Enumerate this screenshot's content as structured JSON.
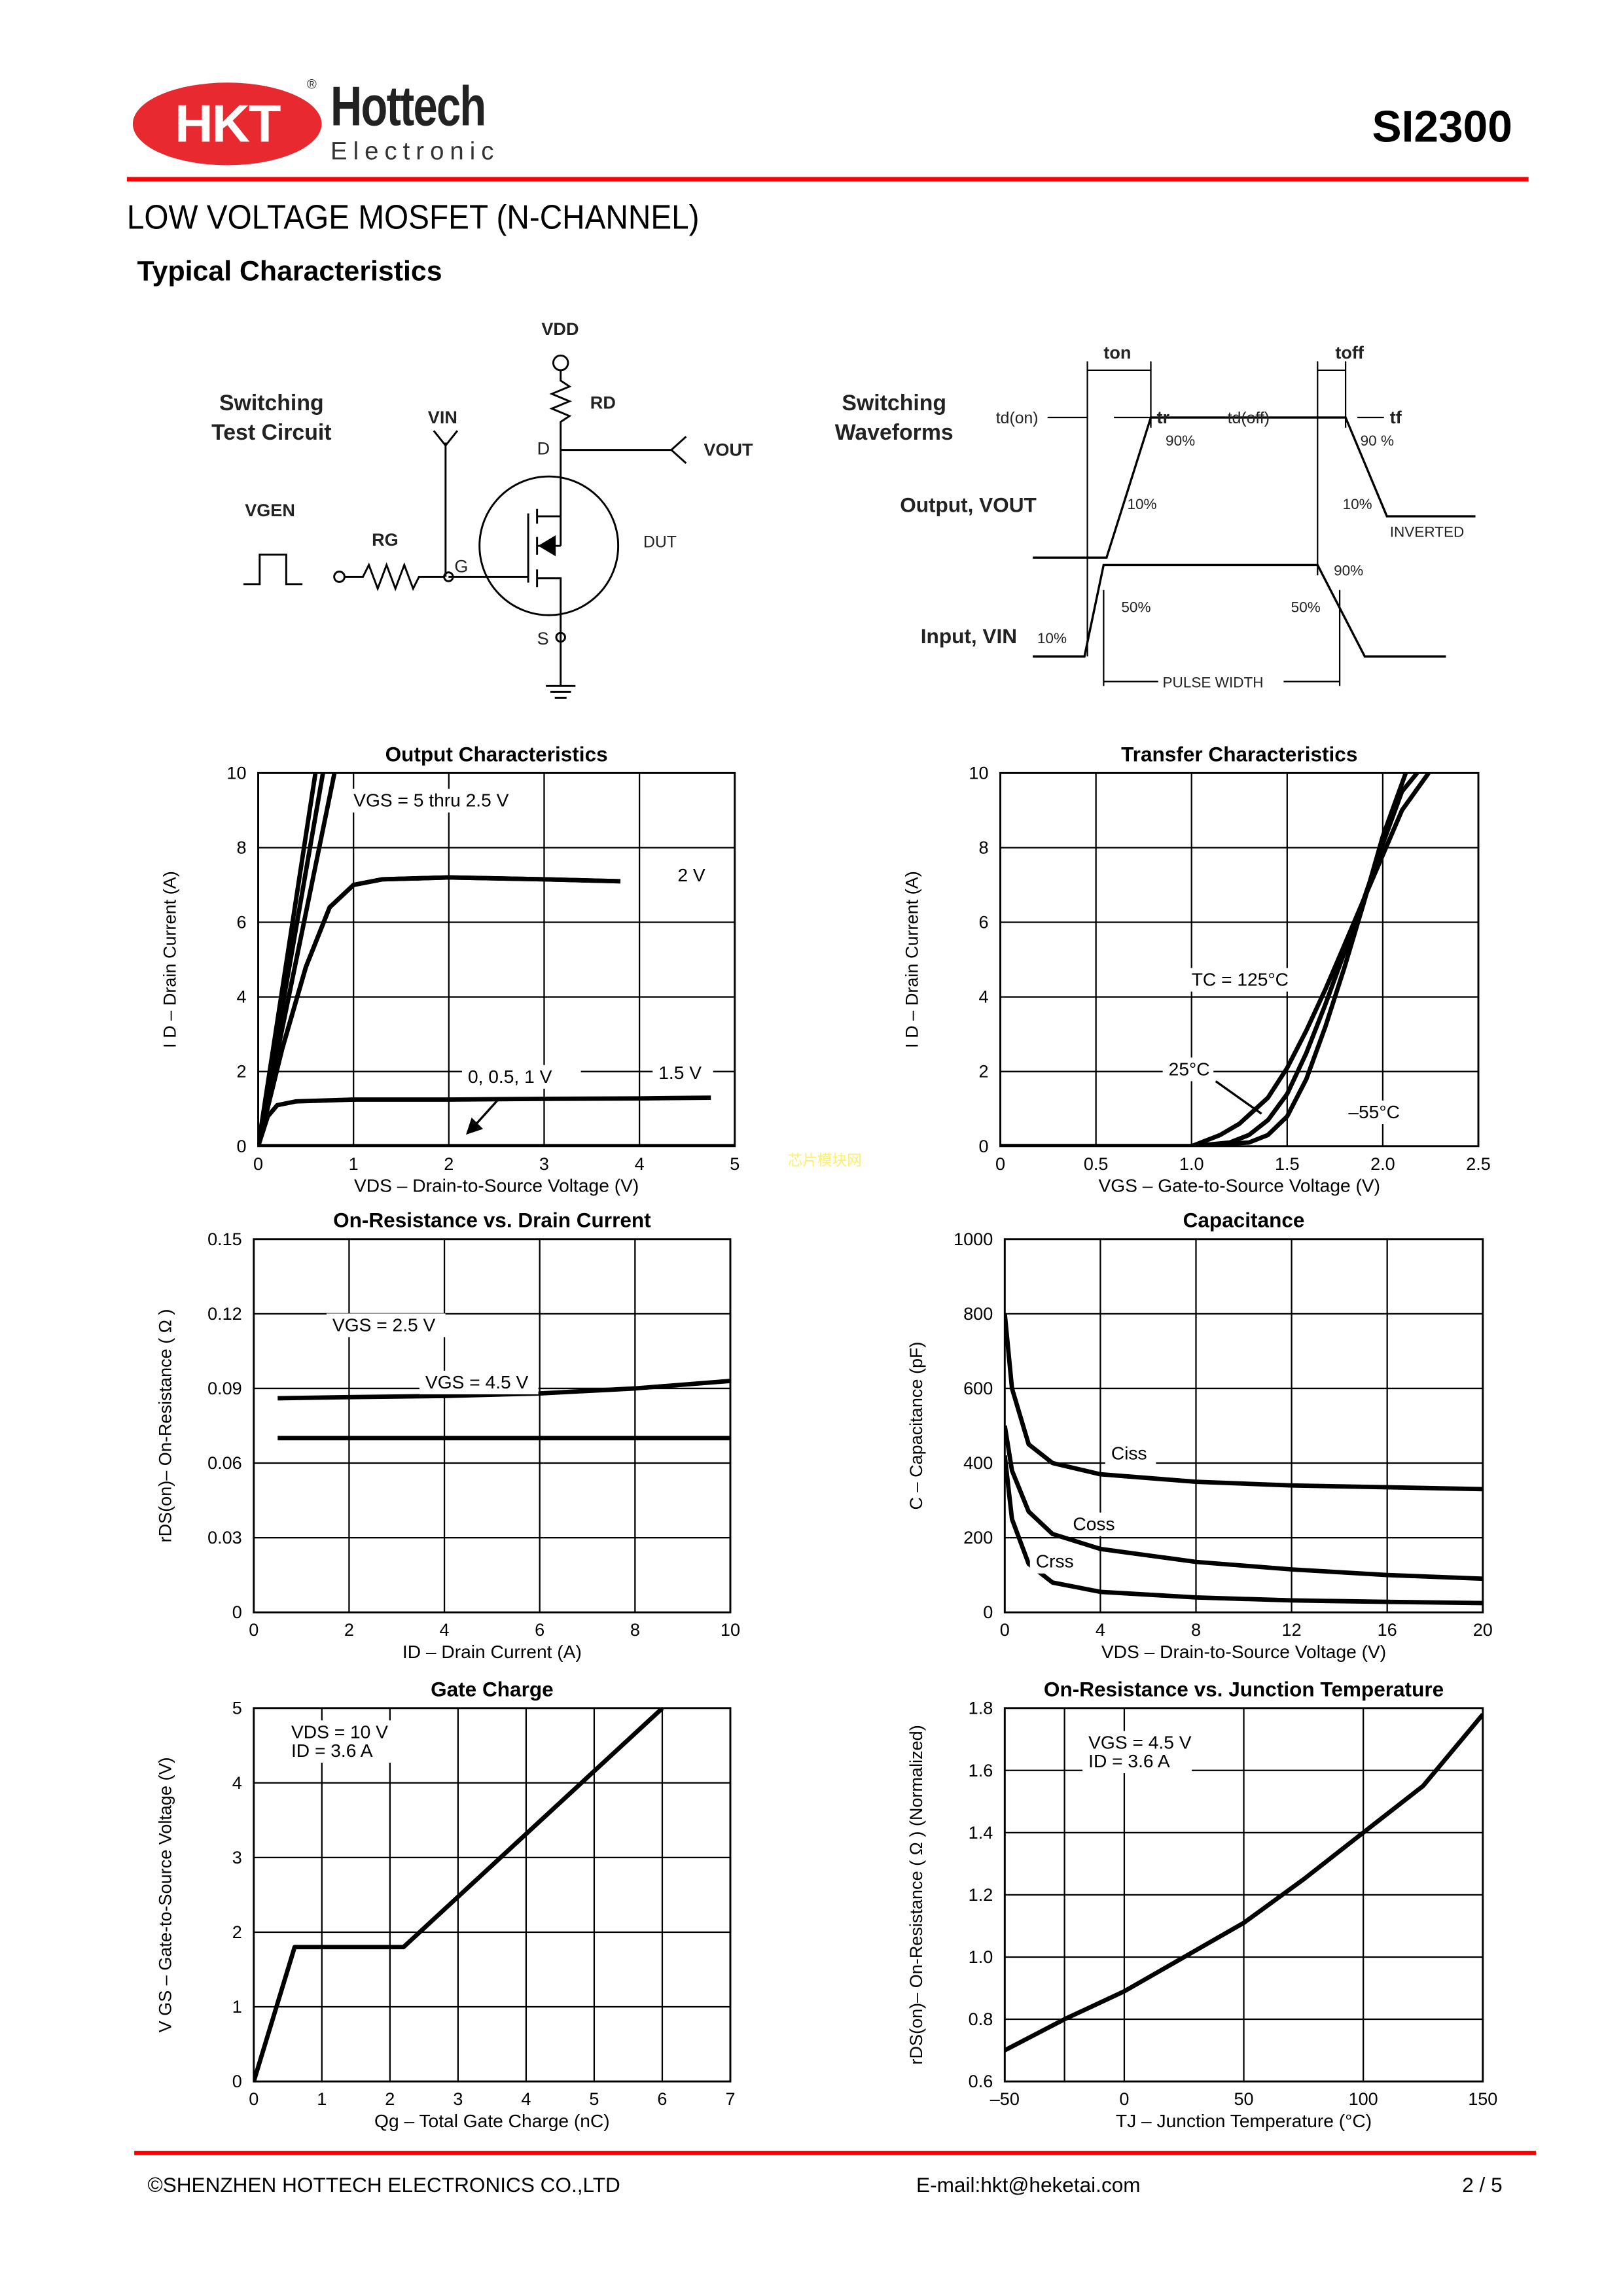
{
  "header": {
    "logo_mark": "HKT",
    "logo_brand": "Hottech",
    "logo_sub": "Electronic",
    "registered": "®",
    "part_number": "SI2300",
    "accent_color": "#ff0000",
    "logo_color": "#e8292f"
  },
  "document": {
    "title": "LOW VOLTAGE MOSFET  (N-CHANNEL)",
    "section": "Typical Characteristics"
  },
  "circuit": {
    "title1": "Switching",
    "title2": "Test Circuit",
    "vdd": "VDD",
    "rd": "RD",
    "d": "D",
    "vout": "VOUT",
    "vin": "VIN",
    "vgen": "VGEN",
    "rg": "RG",
    "g": "G",
    "s": "S",
    "dut": "DUT"
  },
  "waveforms": {
    "title1": "Switching",
    "title2": "Waveforms",
    "ton": "ton",
    "toff": "toff",
    "tdon": "td(on)",
    "tr": "tr",
    "tdoff": "td(off)",
    "tf": "tf",
    "output": "Output, VOUT",
    "input": "Input, VIN",
    "p90a": "90%",
    "p90b": "90 %",
    "p10a": "10%",
    "p10b": "10%",
    "inverted": "INVERTED",
    "p90c": "90%",
    "p50a": "50%",
    "p50b": "50%",
    "p10c": "10%",
    "pulse": "PULSE WIDTH"
  },
  "watermark": "芯片模块网",
  "chart_data": [
    {
      "type": "line",
      "title": "Output Characteristics",
      "xlabel": "VDS  –  Drain-to-Source Voltage (V)",
      "ylabel": "I D – Drain Current (A)",
      "xlim": [
        0,
        5
      ],
      "ylim": [
        0,
        10
      ],
      "grid": true,
      "xtick_labels": [
        "0",
        "1",
        "2",
        "3",
        "4",
        "5"
      ],
      "ytick_labels": [
        "0",
        "2",
        "4",
        "6",
        "8",
        "10"
      ],
      "series": [
        {
          "name": "VGS = 5 thru 2.5 V",
          "x": [
            0,
            0.6
          ],
          "y": [
            0,
            10
          ]
        },
        {
          "x": [
            0,
            0.68
          ],
          "y": [
            0,
            10
          ]
        },
        {
          "x": [
            0,
            0.8
          ],
          "y": [
            0,
            10
          ]
        },
        {
          "x": [
            0,
            0.25,
            0.5,
            0.75,
            1,
            1.3,
            2,
            3,
            3.8
          ],
          "y": [
            0,
            2.6,
            4.8,
            6.4,
            7.0,
            7.15,
            7.2,
            7.15,
            7.1
          ]
        },
        {
          "name": "2 V",
          "x": [
            0,
            0.25,
            0.5,
            0.75,
            1,
            1.3,
            2,
            3,
            3.8
          ],
          "y": [
            0,
            2.6,
            4.8,
            6.4,
            7.0,
            7.15,
            7.2,
            7.15,
            7.1
          ]
        },
        {
          "name": "1.5 V",
          "x": [
            0,
            0.1,
            0.2,
            0.4,
            1,
            2,
            3,
            4,
            4.75
          ],
          "y": [
            0,
            0.8,
            1.1,
            1.2,
            1.25,
            1.25,
            1.27,
            1.28,
            1.3
          ]
        },
        {
          "name": "0, 0.5, 1 V",
          "x": [
            0,
            5
          ],
          "y": [
            0,
            0
          ]
        }
      ],
      "annotations": [
        "VGS = 5 thru 2.5 V",
        "2 V",
        "1.5 V",
        "0, 0.5, 1 V"
      ]
    },
    {
      "type": "line",
      "title": "Transfer Characteristics",
      "xlabel": "VGS – Gate-to-Source Voltage (V)",
      "ylabel": "I D – Drain Current (A)",
      "xlim": [
        0,
        2.5
      ],
      "ylim": [
        0,
        10
      ],
      "grid": true,
      "xtick_labels": [
        "0",
        "0.5",
        "1.0",
        "1.5",
        "2.0",
        "2.5"
      ],
      "ytick_labels": [
        "0",
        "2",
        "4",
        "6",
        "8",
        "10"
      ],
      "series": [
        {
          "name": "TC = 125°C",
          "x": [
            0,
            1.0,
            1.15,
            1.25,
            1.4,
            1.5,
            1.6,
            1.7,
            1.8,
            1.9,
            2.0,
            2.1,
            2.24
          ],
          "y": [
            0,
            0,
            0.3,
            0.6,
            1.3,
            2.1,
            3.1,
            4.2,
            5.4,
            6.6,
            7.8,
            9,
            10
          ]
        },
        {
          "name": "25°C",
          "x": [
            0,
            1.0,
            1.2,
            1.3,
            1.4,
            1.5,
            1.6,
            1.7,
            1.8,
            1.9,
            2.0,
            2.1,
            2.18
          ],
          "y": [
            0,
            0,
            0.1,
            0.3,
            0.7,
            1.4,
            2.5,
            3.8,
            5.2,
            6.6,
            8.1,
            9.5,
            10
          ]
        },
        {
          "name": "–55°C",
          "x": [
            0,
            1.0,
            1.3,
            1.4,
            1.5,
            1.6,
            1.7,
            1.8,
            1.9,
            2.0,
            2.12
          ],
          "y": [
            0,
            0,
            0.1,
            0.3,
            0.8,
            1.8,
            3.2,
            4.8,
            6.5,
            8.3,
            10
          ]
        }
      ],
      "annotations": [
        "TC = 125°C",
        "25°C",
        "–55°C"
      ]
    },
    {
      "type": "line",
      "title": "On-Resistance vs. Drain Current",
      "xlabel": "ID  –  Drain Current (A)",
      "ylabel": "rDS(on)– On-Resistance ( Ω )",
      "xlim": [
        0,
        10
      ],
      "ylim": [
        0,
        0.15
      ],
      "grid": true,
      "xtick_labels": [
        "0",
        "2",
        "4",
        "6",
        "8",
        "10"
      ],
      "ytick_labels": [
        "0",
        "0.03",
        "0.06",
        "0.09",
        "0.12",
        "0.15"
      ],
      "series": [
        {
          "name": "VGS = 2.5 V",
          "x": [
            0.5,
            2,
            4,
            6,
            8,
            10
          ],
          "y": [
            0.086,
            0.0865,
            0.087,
            0.088,
            0.09,
            0.093
          ]
        },
        {
          "name": "VGS = 4.5 V",
          "x": [
            0.5,
            10
          ],
          "y": [
            0.07,
            0.07
          ]
        }
      ],
      "annotations": [
        "VGS = 2.5 V",
        "VGS = 4.5 V"
      ]
    },
    {
      "type": "line",
      "title": "Capacitance",
      "xlabel": "VDS – Drain-to-Source Voltage (V)",
      "ylabel": "C – Capacitance (pF)",
      "xlim": [
        0,
        20
      ],
      "ylim": [
        0,
        1000
      ],
      "grid": true,
      "xtick_labels": [
        "0",
        "4",
        "8",
        "12",
        "16",
        "20"
      ],
      "ytick_labels": [
        "0",
        "200",
        "400",
        "600",
        "800",
        "1000"
      ],
      "series": [
        {
          "name": "Ciss",
          "x": [
            0,
            0.3,
            1,
            2,
            4,
            8,
            12,
            16,
            20
          ],
          "y": [
            800,
            600,
            450,
            400,
            370,
            350,
            340,
            335,
            330
          ]
        },
        {
          "name": "Coss",
          "x": [
            0,
            0.3,
            1,
            2,
            4,
            8,
            12,
            16,
            20
          ],
          "y": [
            500,
            380,
            270,
            210,
            170,
            135,
            115,
            100,
            90
          ]
        },
        {
          "name": "Crss",
          "x": [
            0,
            0.3,
            1,
            2,
            4,
            8,
            12,
            16,
            20
          ],
          "y": [
            420,
            250,
            130,
            80,
            55,
            40,
            32,
            28,
            25
          ]
        }
      ],
      "annotations": [
        "Ciss",
        "Coss",
        "Crss"
      ]
    },
    {
      "type": "line",
      "title": "Gate Charge",
      "xlabel": "Qg – Total Gate Charge (nC)",
      "ylabel": "V GS – Gate-to-Source Voltage (V)",
      "xlim": [
        0,
        7
      ],
      "ylim": [
        0,
        5
      ],
      "grid": true,
      "xtick_labels": [
        "0",
        "1",
        "2",
        "3",
        "4",
        "5",
        "6",
        "7"
      ],
      "ytick_labels": [
        "0",
        "1",
        "2",
        "3",
        "4",
        "5"
      ],
      "series": [
        {
          "x": [
            0,
            0.6,
            2.2,
            6.0
          ],
          "y": [
            0,
            1.8,
            1.8,
            5
          ]
        }
      ],
      "annotations": [
        "VDS = 10 V",
        "ID = 3.6 A"
      ]
    },
    {
      "type": "line",
      "title": "On-Resistance vs. Junction Temperature",
      "xlabel": "TJ – Junction Temperature (°C)",
      "ylabel": "rDS(on)– On-Resistance ( Ω ) (Normalized)",
      "xlim": [
        -50,
        150
      ],
      "ylim": [
        0.6,
        1.8
      ],
      "grid": true,
      "xtick_labels": [
        "–50",
        "0",
        "50",
        "100",
        "150"
      ],
      "ytick_labels": [
        "0.6",
        "0.8",
        "1.0",
        "1.2",
        "1.4",
        "1.6",
        "1.8"
      ],
      "series": [
        {
          "x": [
            -50,
            -25,
            0,
            25,
            50,
            75,
            100,
            125,
            150
          ],
          "y": [
            0.7,
            0.8,
            0.89,
            1.0,
            1.11,
            1.25,
            1.4,
            1.55,
            1.78
          ]
        }
      ],
      "annotations": [
        "VGS = 4.5 V",
        "ID = 3.6 A"
      ]
    }
  ],
  "footer": {
    "company": "©SHENZHEN HOTTECH ELECTRONICS CO.,LTD",
    "email": "E-mail:hkt@heketai.com",
    "page": "2 / 5"
  }
}
